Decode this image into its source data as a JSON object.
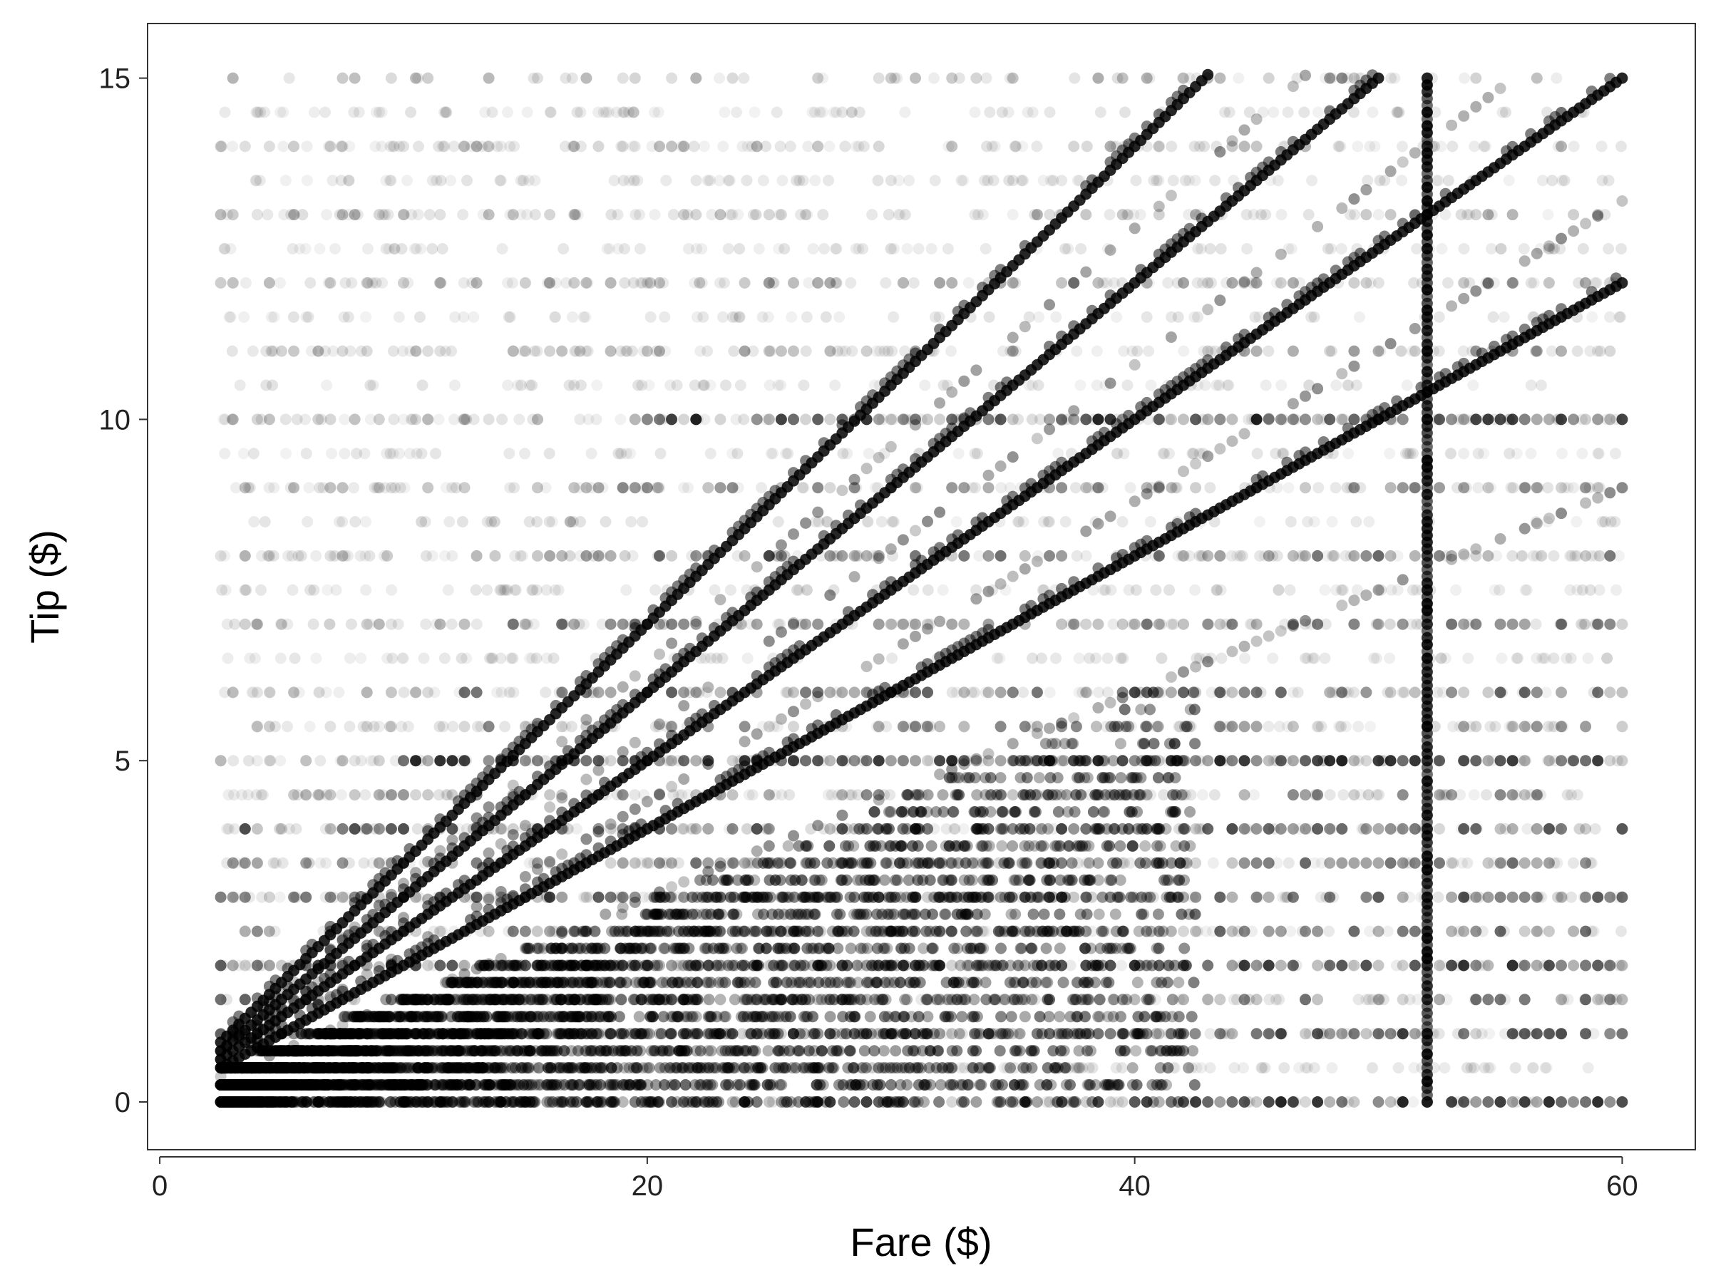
{
  "chart_data": {
    "type": "scatter",
    "title": "",
    "xlabel": "Fare ($)",
    "ylabel": "Tip ($)",
    "xlim": [
      -0.5,
      63
    ],
    "ylim": [
      -0.7,
      15.8
    ],
    "xticks": [
      0,
      20,
      40,
      60
    ],
    "yticks": [
      0,
      5,
      10,
      15
    ],
    "grid": false,
    "legend": "none",
    "point_color": "#000000",
    "point_opacity": 0.08,
    "panel_border_color": "#333333",
    "x_range": [
      2.5,
      60
    ],
    "fare_step": 0.5,
    "tip_percentage_lines": [
      0.2,
      0.25,
      0.3,
      0.35
    ],
    "flat_tip_rows": [
      {
        "tip": 0,
        "weight": 0.9
      },
      {
        "tip": 1,
        "weight": 0.8
      },
      {
        "tip": 1.5,
        "weight": 0.6
      },
      {
        "tip": 2,
        "weight": 0.85
      },
      {
        "tip": 2.5,
        "weight": 0.6
      },
      {
        "tip": 3,
        "weight": 0.7
      },
      {
        "tip": 3.5,
        "weight": 0.5
      },
      {
        "tip": 4,
        "weight": 0.7
      },
      {
        "tip": 4.5,
        "weight": 0.4
      },
      {
        "tip": 5,
        "weight": 0.9
      },
      {
        "tip": 5.5,
        "weight": 0.4
      },
      {
        "tip": 6,
        "weight": 0.6
      },
      {
        "tip": 7,
        "weight": 0.5
      },
      {
        "tip": 8,
        "weight": 0.55
      },
      {
        "tip": 9,
        "weight": 0.4
      },
      {
        "tip": 10,
        "weight": 0.9
      },
      {
        "tip": 11,
        "weight": 0.3
      },
      {
        "tip": 12,
        "weight": 0.3
      },
      {
        "tip": 13,
        "weight": 0.2
      },
      {
        "tip": 14,
        "weight": 0.2
      },
      {
        "tip": 15,
        "weight": 0.35
      }
    ],
    "flat_fare_column": {
      "fare": 52,
      "tip_min": 0,
      "tip_max": 15
    }
  }
}
